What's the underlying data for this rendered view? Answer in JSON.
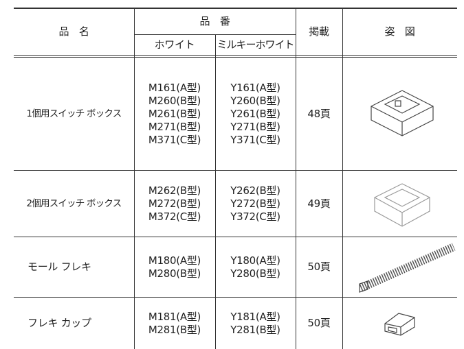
{
  "header": {
    "name": "品　名",
    "part_number": "品　番",
    "white": "ホワイト",
    "milky_white": "ミルキーホワイト",
    "page": "掲載",
    "figure": "姿　図"
  },
  "rows": [
    {
      "name": "1個用スイッチ ボックス",
      "white": [
        "M161(A型)",
        "M260(B型)",
        "M261(B型)",
        "M271(B型)",
        "M371(C型)"
      ],
      "milky_white": [
        "Y161(A型)",
        "Y260(B型)",
        "Y261(B型)",
        "Y271(B型)",
        "Y371(C型)"
      ],
      "page": "48頁"
    },
    {
      "name": "2個用スイッチ ボックス",
      "white": [
        "M262(B型)",
        "M272(B型)",
        "M372(C型)"
      ],
      "milky_white": [
        "Y262(B型)",
        "Y272(B型)",
        "Y372(C型)"
      ],
      "page": "49頁"
    },
    {
      "name": "モール フレキ",
      "white": [
        "M180(A型)",
        "M280(B型)"
      ],
      "milky_white": [
        "Y180(A型)",
        "Y280(B型)"
      ],
      "page": "50頁"
    },
    {
      "name": "フレキ カップ",
      "white": [
        "M181(A型)",
        "M281(B型)"
      ],
      "milky_white": [
        "Y181(A型)",
        "Y281(B型)"
      ],
      "page": "50頁"
    }
  ]
}
